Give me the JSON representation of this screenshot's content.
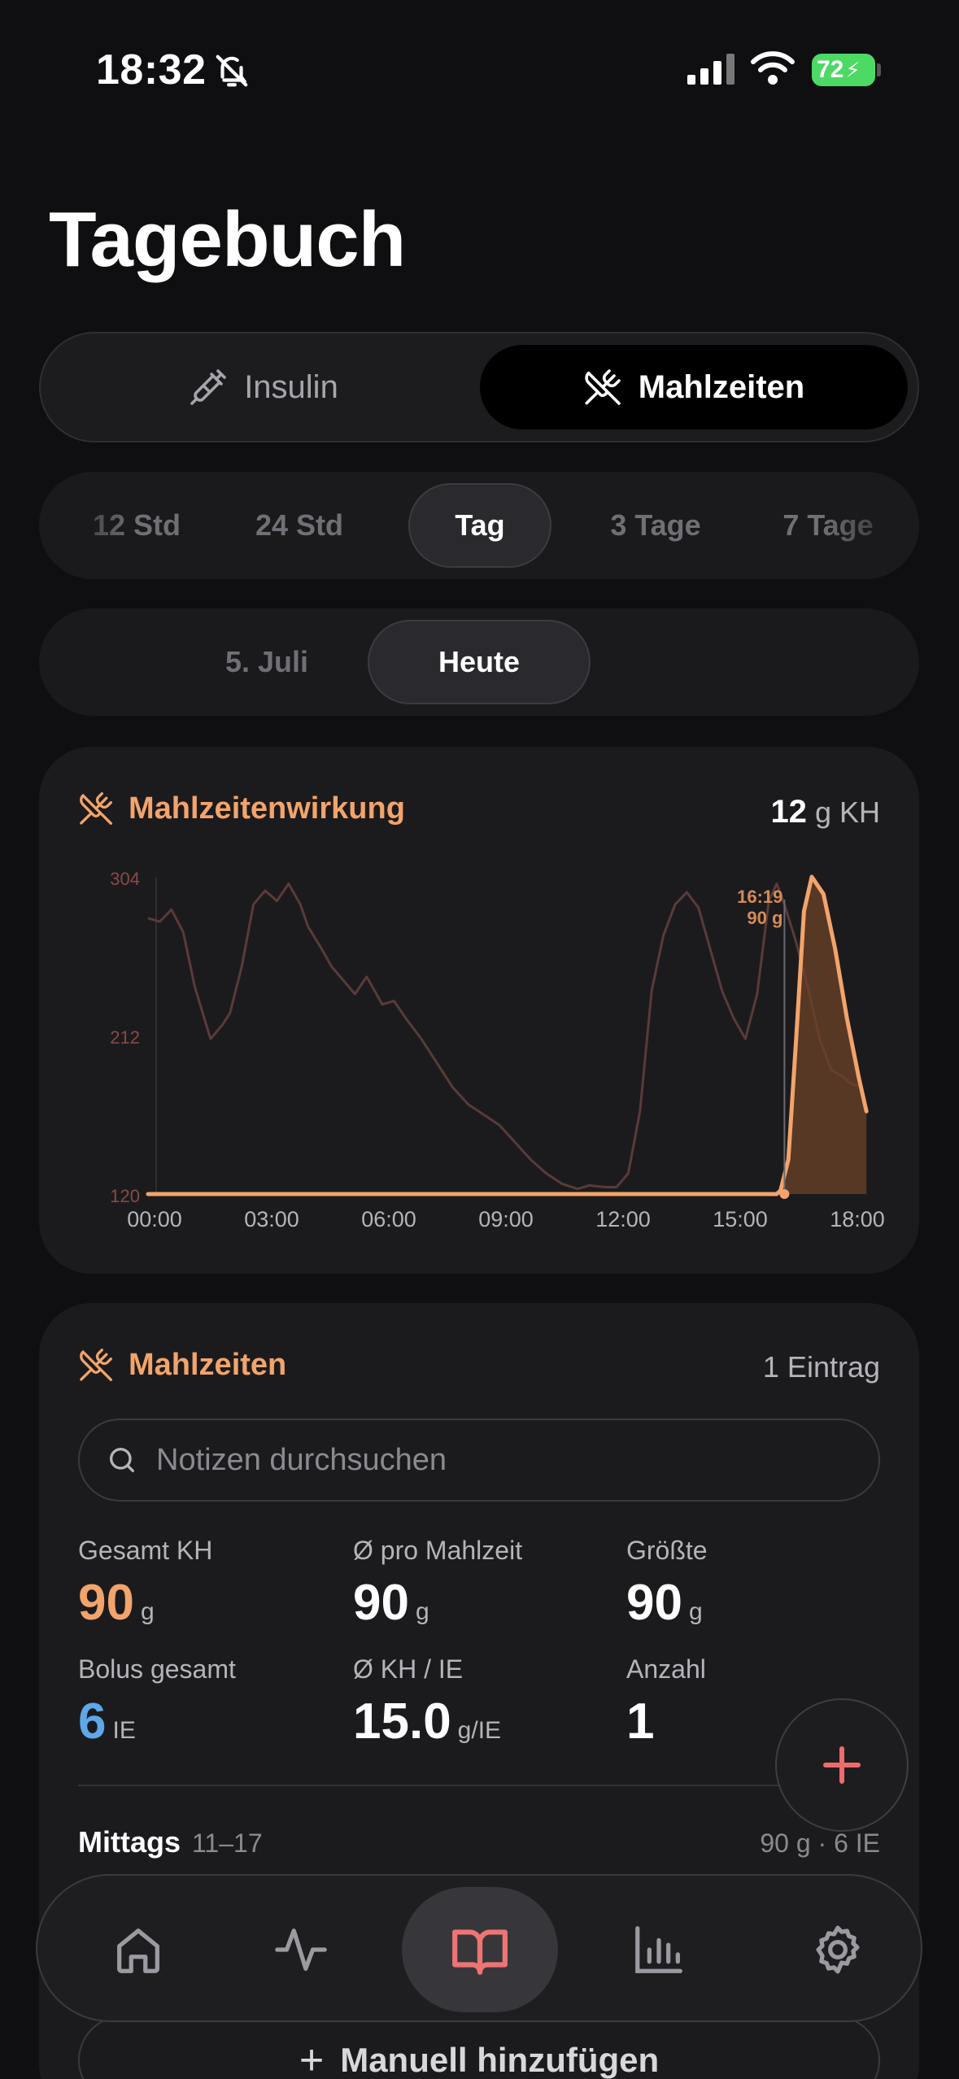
{
  "status_bar": {
    "time": "18:32",
    "battery": "72"
  },
  "page": {
    "title": "Tagebuch"
  },
  "mode_switch": {
    "insulin": "Insulin",
    "meals": "Mahlzeiten"
  },
  "range_chips": [
    "12 Std",
    "24 Std",
    "Tag",
    "3 Tage",
    "7 Tage"
  ],
  "day_chips": [
    "5. Juli",
    "Heute"
  ],
  "chart_card": {
    "title": "Mahlzeitenwirkung",
    "total_value": "12",
    "total_unit": "g KH",
    "marker_time": "16:19",
    "marker_amount": "90 g"
  },
  "chart_data": {
    "type": "area",
    "x_ticks": [
      "00:00",
      "03:00",
      "06:00",
      "09:00",
      "12:00",
      "15:00",
      "18:00"
    ],
    "y_ticks": [
      "304",
      "212",
      "120"
    ],
    "xlim_hours": [
      0,
      18.5
    ],
    "ylim": [
      120,
      304
    ],
    "series": [
      {
        "role": "glucose-background",
        "color": "#5a3b38",
        "x": [
          0,
          0.3,
          0.6,
          0.9,
          1.2,
          1.6,
          1.9,
          2.1,
          2.4,
          2.7,
          3.0,
          3.3,
          3.6,
          3.9,
          4.1,
          4.4,
          4.7,
          5.0,
          5.3,
          5.6,
          6.0,
          6.3,
          6.6,
          7.0,
          7.4,
          7.8,
          8.2,
          8.6,
          9.0,
          9.4,
          9.8,
          10.2,
          10.6,
          11.0,
          11.3,
          11.7,
          12.0,
          12.3,
          12.6,
          12.9,
          13.2,
          13.5,
          13.8,
          14.1,
          14.4,
          14.7,
          15.0,
          15.3,
          15.6,
          15.9,
          16.1,
          16.3,
          16.6,
          16.9,
          17.2,
          17.5,
          17.8,
          18.0,
          18.3
        ],
        "y": [
          280,
          278,
          285,
          272,
          240,
          210,
          218,
          225,
          252,
          288,
          296,
          290,
          300,
          288,
          275,
          264,
          252,
          244,
          236,
          246,
          230,
          232,
          222,
          210,
          196,
          182,
          172,
          166,
          160,
          150,
          140,
          132,
          126,
          123,
          125,
          124,
          124,
          132,
          168,
          238,
          270,
          288,
          295,
          286,
          262,
          238,
          222,
          210,
          236,
          290,
          300,
          288,
          266,
          240,
          210,
          192,
          188,
          184,
          182
        ]
      },
      {
        "name": "Mahlzeitenwirkung",
        "color": "#f2a46b",
        "x": [
          0,
          16.1,
          16.2,
          16.4,
          16.6,
          16.8,
          17.0,
          17.3,
          17.6,
          17.9,
          18.2,
          18.4
        ],
        "y": [
          120,
          120,
          122,
          140,
          210,
          284,
          304,
          294,
          262,
          222,
          188,
          168
        ]
      }
    ],
    "marker": {
      "x": 16.3,
      "label_time": "16:19",
      "label_amount": "90 g"
    }
  },
  "meals_card": {
    "title": "Mahlzeiten",
    "count": "1 Eintrag",
    "search_placeholder": "Notizen durchsuchen",
    "stats": [
      {
        "label": "Gesamt KH",
        "value": "90",
        "unit": "g",
        "accent": "orange"
      },
      {
        "label": "Ø pro Mahlzeit",
        "value": "90",
        "unit": "g",
        "accent": "none"
      },
      {
        "label": "Größte",
        "value": "90",
        "unit": "g",
        "accent": "none"
      },
      {
        "label": "Bolus gesamt",
        "value": "6",
        "unit": "IE",
        "accent": "blue"
      },
      {
        "label": "Ø KH / IE",
        "value": "15.0",
        "unit": "g/IE",
        "accent": "none"
      },
      {
        "label": "Anzahl",
        "value": "1",
        "unit": "",
        "accent": "none"
      }
    ],
    "group_name": "Mittags",
    "group_range": "11–17",
    "group_summary": "90 g · 6 IE",
    "manual_add": "Manuell hinzufügen"
  },
  "colors": {
    "accent_orange": "#f2a46b",
    "accent_blue": "#5ea8ea",
    "accent_red": "#ef7474",
    "background": "#0f0f11"
  },
  "tab_bar": {
    "items": [
      {
        "icon": "home-icon",
        "active": false
      },
      {
        "icon": "activity-icon",
        "active": false
      },
      {
        "icon": "book-icon",
        "active": true
      },
      {
        "icon": "bar-chart-icon",
        "active": false
      },
      {
        "icon": "gear-icon",
        "active": false
      }
    ]
  }
}
